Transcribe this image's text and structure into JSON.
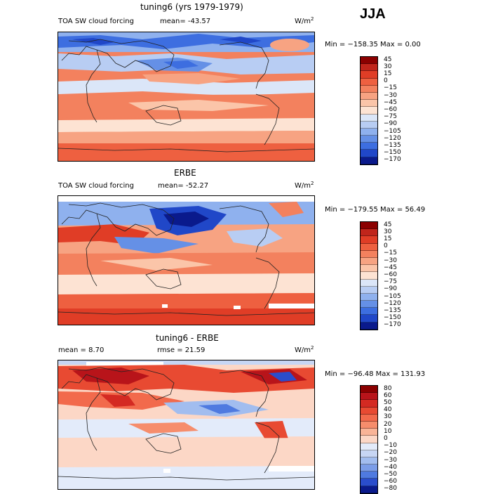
{
  "season": "JJA",
  "panels": [
    {
      "title": "tuning6 (yrs 1979-1979)",
      "label": "TOA SW cloud forcing",
      "stat1": "mean= -43.57",
      "units": "W/m",
      "units_exp": "2",
      "minmax": "Min = −158.35 Max =    0.00",
      "levels": [
        "45",
        "30",
        "15",
        "0",
        "−15",
        "−30",
        "−45",
        "−60",
        "−75",
        "−90",
        "−105",
        "−120",
        "−135",
        "−150",
        "−170"
      ],
      "colors": [
        "#8b0000",
        "#c0251b",
        "#e03d26",
        "#ee6040",
        "#f3815e",
        "#f7a382",
        "#fbc5a9",
        "#fde3d3",
        "#dbe6f8",
        "#b8cdf3",
        "#8fb1ee",
        "#6590e6",
        "#3d6ee0",
        "#2047c8",
        "#0a1a8c"
      ]
    },
    {
      "title": "ERBE",
      "label": "TOA SW cloud forcing",
      "stat1": "mean= -52.27",
      "units": "W/m",
      "units_exp": "2",
      "minmax": "Min = −179.55 Max =  56.49",
      "levels": [
        "45",
        "30",
        "15",
        "0",
        "−15",
        "−30",
        "−45",
        "−60",
        "−75",
        "−90",
        "−105",
        "−120",
        "−135",
        "−150",
        "−170"
      ],
      "colors": [
        "#8b0000",
        "#c0251b",
        "#e03d26",
        "#ee6040",
        "#f3815e",
        "#f7a382",
        "#fbc5a9",
        "#fde3d3",
        "#dbe6f8",
        "#b8cdf3",
        "#8fb1ee",
        "#6590e6",
        "#3d6ee0",
        "#2047c8",
        "#0a1a8c"
      ]
    },
    {
      "title": "tuning6 - ERBE",
      "label": "mean =    8.70",
      "stat1": "rmse =   21.59",
      "units": "W/m",
      "units_exp": "2",
      "minmax": "Min = −96.48 Max = 131.93",
      "levels": [
        "80",
        "60",
        "50",
        "40",
        "30",
        "20",
        "10",
        "0",
        "−10",
        "−20",
        "−30",
        "−40",
        "−50",
        "−60",
        "−80"
      ],
      "colors": [
        "#8b0000",
        "#b8141a",
        "#d42a22",
        "#e84a32",
        "#f26a4c",
        "#f68d6c",
        "#f9b497",
        "#fcd7c6",
        "#e3ebfa",
        "#c7d6f4",
        "#a2bdef",
        "#7b9de8",
        "#4f7ae0",
        "#2a4dcc",
        "#0a1a8c"
      ]
    }
  ]
}
